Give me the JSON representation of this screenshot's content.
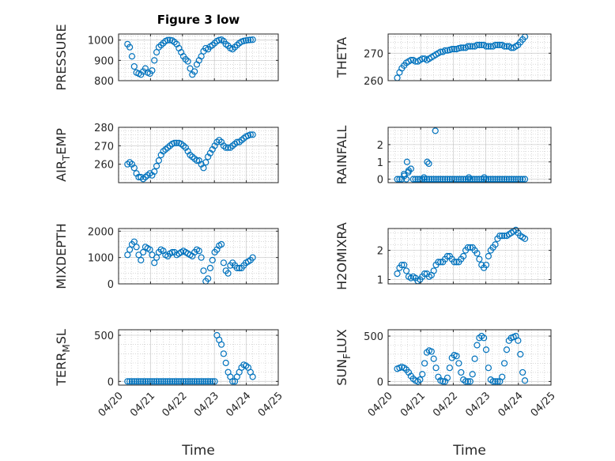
{
  "figure_title": "Figure 3 low",
  "colors": {
    "marker": "#0072BD",
    "axis": "#262626",
    "grid": "#b0b0b0"
  },
  "chart_data": [
    {
      "type": "scatter",
      "id": "pressure",
      "ylabel_main": "PRESSURE",
      "ylabel_sub": "",
      "ylabel_tail": "",
      "ylim": [
        800,
        1030
      ],
      "yticks": [
        800,
        900,
        1000
      ],
      "ytick_labels": [
        "800",
        "900",
        "1000"
      ],
      "x": [
        0.28,
        0.35,
        0.42,
        0.49,
        0.56,
        0.63,
        0.7,
        0.77,
        0.84,
        0.91,
        0.98,
        1.05,
        1.12,
        1.19,
        1.26,
        1.33,
        1.4,
        1.47,
        1.54,
        1.61,
        1.68,
        1.75,
        1.82,
        1.89,
        1.96,
        2.03,
        2.1,
        2.17,
        2.24,
        2.31,
        2.38,
        2.45,
        2.52,
        2.59,
        2.66,
        2.73,
        2.8,
        2.87,
        2.94,
        3.01,
        3.08,
        3.15,
        3.22,
        3.29,
        3.36,
        3.43,
        3.5,
        3.57,
        3.64,
        3.71,
        3.78,
        3.85,
        3.92,
        3.99,
        4.06,
        4.13,
        4.2
      ],
      "y": [
        980,
        965,
        920,
        870,
        840,
        835,
        830,
        845,
        860,
        840,
        835,
        850,
        900,
        940,
        965,
        975,
        985,
        995,
        1000,
        1000,
        998,
        990,
        980,
        960,
        940,
        920,
        905,
        895,
        860,
        830,
        845,
        880,
        900,
        920,
        945,
        960,
        955,
        968,
        975,
        985,
        995,
        1000,
        1002,
        995,
        980,
        972,
        960,
        955,
        965,
        975,
        985,
        992,
        996,
        998,
        1000,
        1001,
        1002
      ]
    },
    {
      "type": "scatter",
      "id": "theta",
      "ylabel_main": "THETA",
      "ylabel_sub": "",
      "ylabel_tail": "",
      "ylim": [
        260,
        277
      ],
      "yticks": [
        260,
        270
      ],
      "ytick_labels": [
        "260",
        "270"
      ],
      "x": [
        0.28,
        0.35,
        0.42,
        0.49,
        0.56,
        0.63,
        0.7,
        0.77,
        0.84,
        0.91,
        0.98,
        1.05,
        1.12,
        1.19,
        1.26,
        1.33,
        1.4,
        1.47,
        1.54,
        1.61,
        1.68,
        1.75,
        1.82,
        1.89,
        1.96,
        2.03,
        2.1,
        2.17,
        2.24,
        2.31,
        2.38,
        2.45,
        2.52,
        2.59,
        2.66,
        2.73,
        2.8,
        2.87,
        2.94,
        3.01,
        3.08,
        3.15,
        3.22,
        3.29,
        3.36,
        3.43,
        3.5,
        3.57,
        3.64,
        3.71,
        3.78,
        3.85,
        3.92,
        3.99,
        4.06,
        4.13,
        4.2
      ],
      "y": [
        261,
        263,
        264.5,
        265.5,
        266.5,
        267,
        267.5,
        267.5,
        267,
        267,
        267.5,
        268,
        268,
        267.5,
        268,
        268.5,
        269,
        269.5,
        270,
        270.5,
        270.5,
        271,
        271,
        271.2,
        271.5,
        271.5,
        271.5,
        271.8,
        272,
        272,
        272,
        272.5,
        272.5,
        272.5,
        272.5,
        273,
        273,
        273,
        273,
        272.5,
        272.5,
        272.5,
        272.5,
        273,
        273,
        273,
        273,
        272.5,
        272.5,
        272.5,
        272,
        272,
        272.5,
        273,
        274,
        275,
        276
      ]
    },
    {
      "type": "scatter",
      "id": "airtemp",
      "ylabel_main": "AIR",
      "ylabel_sub": "T",
      "ylabel_tail": "EMP",
      "ylim": [
        250,
        280
      ],
      "yticks": [
        260,
        270,
        280
      ],
      "ytick_labels": [
        "260",
        "270",
        "280"
      ],
      "x": [
        0.28,
        0.35,
        0.42,
        0.49,
        0.56,
        0.63,
        0.7,
        0.77,
        0.84,
        0.91,
        0.98,
        1.05,
        1.12,
        1.19,
        1.26,
        1.33,
        1.4,
        1.47,
        1.54,
        1.61,
        1.68,
        1.75,
        1.82,
        1.89,
        1.96,
        2.03,
        2.1,
        2.17,
        2.24,
        2.31,
        2.38,
        2.45,
        2.52,
        2.59,
        2.66,
        2.73,
        2.8,
        2.87,
        2.94,
        3.01,
        3.08,
        3.15,
        3.22,
        3.29,
        3.36,
        3.43,
        3.5,
        3.57,
        3.64,
        3.71,
        3.78,
        3.85,
        3.92,
        3.99,
        4.06,
        4.13,
        4.2
      ],
      "y": [
        260,
        261,
        260,
        258,
        255,
        253,
        253,
        252,
        253,
        254,
        255,
        254,
        256,
        259,
        262,
        265,
        267,
        268,
        269,
        270,
        271,
        271.5,
        271.5,
        271.5,
        271,
        270,
        269,
        267,
        265,
        264,
        263,
        262,
        262,
        260,
        258,
        261,
        264,
        266,
        268,
        270,
        272,
        273,
        272,
        270,
        269,
        269,
        269,
        270,
        271,
        272,
        272,
        273,
        274,
        275,
        275.5,
        276,
        276
      ]
    },
    {
      "type": "scatter",
      "id": "rainfall",
      "ylabel_main": "RAINFALL",
      "ylabel_sub": "",
      "ylabel_tail": "",
      "ylim": [
        -0.2,
        3.0
      ],
      "yticks": [
        0,
        1,
        2
      ],
      "ytick_labels": [
        "0",
        "1",
        "2"
      ],
      "x": [
        0.28,
        0.35,
        0.42,
        0.49,
        0.56,
        0.63,
        0.7,
        0.77,
        0.84,
        0.91,
        0.98,
        1.05,
        1.12,
        1.19,
        1.26,
        1.33,
        1.4,
        1.47,
        1.54,
        1.61,
        1.68,
        1.75,
        1.82,
        1.89,
        1.96,
        2.03,
        2.1,
        2.17,
        2.24,
        2.31,
        2.38,
        2.45,
        2.52,
        2.59,
        2.66,
        2.73,
        2.8,
        2.87,
        2.94,
        3.01,
        3.08,
        3.15,
        3.22,
        3.29,
        3.36,
        3.43,
        3.5,
        3.57,
        3.64,
        3.71,
        3.78,
        3.85,
        3.92,
        3.99,
        4.06,
        4.13,
        4.2,
        0.5,
        0.58,
        0.62,
        1.1,
        1.2,
        1.25,
        1.45,
        2.48,
        2.95
      ],
      "y": [
        0,
        0,
        0,
        0.3,
        0,
        0.5,
        0.6,
        0,
        0,
        0,
        0,
        0,
        0,
        0,
        0,
        0,
        0,
        0,
        0,
        0,
        0,
        0,
        0,
        0,
        0,
        0,
        0,
        0,
        0,
        0,
        0,
        0,
        0,
        0,
        0,
        0,
        0,
        0,
        0,
        0,
        0,
        0,
        0,
        0,
        0,
        0,
        0,
        0,
        0,
        0,
        0,
        0,
        0,
        0,
        0,
        0,
        0,
        0.2,
        1.0,
        0.4,
        0.1,
        1.0,
        0.9,
        2.8,
        0.1,
        0.1
      ]
    },
    {
      "type": "scatter",
      "id": "mixdepth",
      "ylabel_main": "MIXDEPTH",
      "ylabel_sub": "",
      "ylabel_tail": "",
      "ylim": [
        0,
        2100
      ],
      "yticks": [
        0,
        1000,
        2000
      ],
      "ytick_labels": [
        "0",
        "1000",
        "2000"
      ],
      "x": [
        0.28,
        0.35,
        0.42,
        0.49,
        0.56,
        0.63,
        0.7,
        0.77,
        0.84,
        0.91,
        0.98,
        1.05,
        1.12,
        1.19,
        1.26,
        1.33,
        1.4,
        1.47,
        1.54,
        1.61,
        1.68,
        1.75,
        1.82,
        1.89,
        1.96,
        2.03,
        2.1,
        2.17,
        2.24,
        2.31,
        2.38,
        2.45,
        2.52,
        2.59,
        2.66,
        2.73,
        2.8,
        2.87,
        2.94,
        3.01,
        3.08,
        3.15,
        3.22,
        3.29,
        3.36,
        3.43,
        3.5,
        3.57,
        3.64,
        3.71,
        3.78,
        3.85,
        3.92,
        3.99,
        4.06,
        4.13,
        4.2
      ],
      "y": [
        1100,
        1300,
        1500,
        1600,
        1400,
        1100,
        900,
        1200,
        1400,
        1350,
        1300,
        1100,
        800,
        1000,
        1200,
        1300,
        1250,
        1100,
        1050,
        1150,
        1200,
        1200,
        1100,
        1150,
        1200,
        1250,
        1200,
        1150,
        1100,
        1050,
        1200,
        1300,
        1250,
        1000,
        500,
        100,
        200,
        600,
        900,
        1200,
        1300,
        1450,
        1500,
        800,
        500,
        400,
        700,
        800,
        700,
        600,
        600,
        600,
        700,
        800,
        850,
        900,
        1000
      ]
    },
    {
      "type": "scatter",
      "id": "h2omixra",
      "ylabel_main": "H2OMIXRA",
      "ylabel_sub": "",
      "ylabel_tail": "",
      "ylim": [
        0.85,
        2.75
      ],
      "yticks": [
        1,
        2
      ],
      "ytick_labels": [
        "1",
        "2"
      ],
      "x": [
        0.28,
        0.35,
        0.42,
        0.49,
        0.56,
        0.63,
        0.7,
        0.77,
        0.84,
        0.91,
        0.98,
        1.05,
        1.12,
        1.19,
        1.26,
        1.33,
        1.4,
        1.47,
        1.54,
        1.61,
        1.68,
        1.75,
        1.82,
        1.89,
        1.96,
        2.03,
        2.1,
        2.17,
        2.24,
        2.31,
        2.38,
        2.45,
        2.52,
        2.59,
        2.66,
        2.73,
        2.8,
        2.87,
        2.94,
        3.01,
        3.08,
        3.15,
        3.22,
        3.29,
        3.36,
        3.43,
        3.5,
        3.57,
        3.64,
        3.71,
        3.78,
        3.85,
        3.92,
        3.99,
        4.06,
        4.13,
        4.2
      ],
      "y": [
        1.2,
        1.4,
        1.5,
        1.5,
        1.3,
        1.1,
        1.05,
        1.1,
        1.05,
        0.95,
        1.0,
        1.1,
        1.2,
        1.2,
        1.1,
        1.15,
        1.3,
        1.5,
        1.6,
        1.6,
        1.6,
        1.7,
        1.8,
        1.8,
        1.7,
        1.6,
        1.6,
        1.6,
        1.7,
        1.8,
        2.0,
        2.1,
        2.1,
        2.1,
        2.0,
        1.9,
        1.7,
        1.5,
        1.4,
        1.5,
        1.8,
        2.0,
        2.1,
        2.2,
        2.4,
        2.5,
        2.5,
        2.5,
        2.5,
        2.55,
        2.6,
        2.65,
        2.7,
        2.6,
        2.5,
        2.45,
        2.4
      ]
    },
    {
      "type": "scatter",
      "id": "terrmsl",
      "ylabel_main": "TERR",
      "ylabel_sub": "M",
      "ylabel_tail": "SL",
      "ylim": [
        -40,
        560
      ],
      "yticks": [
        0,
        500
      ],
      "ytick_labels": [
        "0",
        "500"
      ],
      "x": [
        0.28,
        0.35,
        0.42,
        0.49,
        0.56,
        0.63,
        0.7,
        0.77,
        0.84,
        0.91,
        0.98,
        1.05,
        1.12,
        1.19,
        1.26,
        1.33,
        1.4,
        1.47,
        1.54,
        1.61,
        1.68,
        1.75,
        1.82,
        1.89,
        1.96,
        2.03,
        2.1,
        2.17,
        2.24,
        2.31,
        2.38,
        2.45,
        2.52,
        2.59,
        2.66,
        2.73,
        2.8,
        2.87,
        2.94,
        3.01,
        3.08,
        3.15,
        3.22,
        3.29,
        3.36,
        3.43,
        3.5,
        3.57,
        3.64,
        3.71,
        3.78,
        3.85,
        3.92,
        3.99,
        4.06,
        4.13,
        4.2
      ],
      "y": [
        0,
        0,
        0,
        0,
        0,
        0,
        0,
        0,
        0,
        0,
        0,
        0,
        0,
        0,
        0,
        0,
        0,
        0,
        0,
        0,
        0,
        0,
        0,
        0,
        0,
        0,
        0,
        0,
        0,
        0,
        0,
        0,
        0,
        0,
        0,
        0,
        0,
        0,
        0,
        0,
        500,
        450,
        400,
        300,
        200,
        100,
        50,
        0,
        0,
        50,
        100,
        150,
        180,
        170,
        150,
        100,
        50
      ]
    },
    {
      "type": "scatter",
      "id": "sunflux",
      "ylabel_main": "SUN",
      "ylabel_sub": "F",
      "ylabel_tail": "LUX",
      "ylim": [
        -40,
        570
      ],
      "yticks": [
        0,
        500
      ],
      "ytick_labels": [
        "0",
        "500"
      ],
      "x": [
        0.28,
        0.35,
        0.42,
        0.49,
        0.56,
        0.63,
        0.7,
        0.77,
        0.84,
        0.91,
        0.98,
        1.05,
        1.12,
        1.19,
        1.26,
        1.33,
        1.4,
        1.47,
        1.54,
        1.61,
        1.68,
        1.75,
        1.82,
        1.89,
        1.96,
        2.03,
        2.1,
        2.17,
        2.24,
        2.31,
        2.38,
        2.45,
        2.52,
        2.59,
        2.66,
        2.73,
        2.8,
        2.87,
        2.94,
        3.01,
        3.08,
        3.15,
        3.22,
        3.29,
        3.36,
        3.43,
        3.5,
        3.57,
        3.64,
        3.71,
        3.78,
        3.85,
        3.92,
        3.99,
        4.06,
        4.13,
        4.2
      ],
      "y": [
        140,
        150,
        160,
        150,
        130,
        100,
        60,
        30,
        10,
        0,
        20,
        80,
        200,
        320,
        340,
        330,
        250,
        150,
        50,
        10,
        0,
        0,
        40,
        150,
        260,
        290,
        280,
        200,
        100,
        20,
        0,
        0,
        0,
        80,
        250,
        400,
        480,
        500,
        480,
        350,
        150,
        20,
        0,
        0,
        0,
        0,
        50,
        200,
        350,
        450,
        480,
        490,
        500,
        450,
        300,
        100,
        10
      ]
    }
  ],
  "x_axis": {
    "ticks": [
      0,
      1,
      2,
      3,
      4,
      5
    ],
    "tick_labels": [
      "04/20",
      "04/21",
      "04/22",
      "04/23",
      "04/24",
      "04/25"
    ],
    "xlim": [
      0,
      5
    ],
    "xlabel_left": "Time",
    "xlabel_right": "Time"
  }
}
